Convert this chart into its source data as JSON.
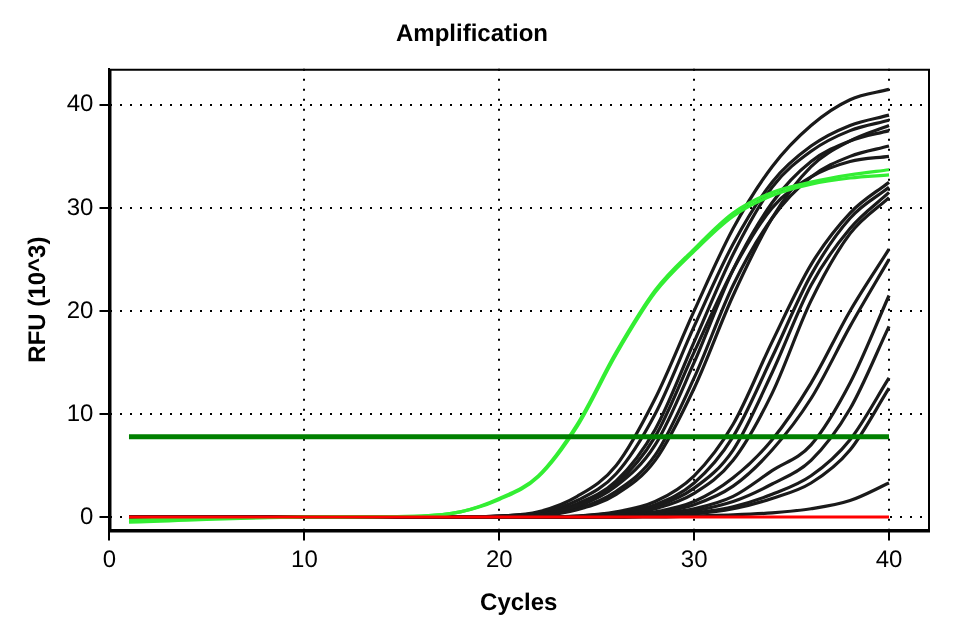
{
  "chart_data": {
    "type": "line",
    "title": "Amplification",
    "xlabel": "Cycles",
    "ylabel": "RFU (10^3)",
    "x": [
      1,
      10,
      16,
      18,
      20,
      22,
      24,
      26,
      28,
      30,
      32,
      34,
      36,
      38,
      40
    ],
    "xlim": [
      0,
      42
    ],
    "xticks": [
      0,
      10,
      20,
      30,
      40
    ],
    "ylim": [
      -1.3,
      43.5
    ],
    "yticks": [
      0,
      10,
      20,
      30,
      40
    ],
    "grid": true,
    "legend": false,
    "marker": "none",
    "line_style": "solid",
    "ref_lines": [
      {
        "axis": "y",
        "value": 7.8,
        "color": "#008000"
      }
    ],
    "series": [
      {
        "color": "#1a1a1a",
        "values": [
          0,
          0,
          0,
          0,
          0.1,
          0.5,
          2,
          5,
          11.5,
          20,
          28,
          34,
          38,
          40.5,
          41.5
        ]
      },
      {
        "color": "#1a1a1a",
        "values": [
          0,
          0,
          0,
          0,
          0.1,
          0.4,
          1.6,
          4.2,
          10,
          18.5,
          26.5,
          32.5,
          36,
          38,
          39
        ]
      },
      {
        "color": "#1a1a1a",
        "values": [
          0,
          0,
          0,
          0,
          0.1,
          0.3,
          1.3,
          3.5,
          8.5,
          17,
          25.5,
          32,
          35.5,
          37.5,
          38.5
        ]
      },
      {
        "color": "#1a1a1a",
        "values": [
          0,
          0,
          0,
          0,
          0,
          0.2,
          1,
          3,
          7,
          15,
          24,
          30.5,
          34.5,
          36.5,
          37.5
        ]
      },
      {
        "color": "#1a1a1a",
        "values": [
          0,
          0,
          0,
          0,
          0,
          0.2,
          0.8,
          2.5,
          6,
          13.5,
          22.5,
          29,
          33,
          35,
          36
        ]
      },
      {
        "color": "#1a1a1a",
        "values": [
          0,
          0,
          0,
          0,
          0,
          0.2,
          1.1,
          3.2,
          7.8,
          16,
          24,
          30,
          33,
          34.5,
          35
        ]
      },
      {
        "color": "#1a1a1a",
        "values": [
          0,
          0,
          0,
          0,
          0,
          0.1,
          0.7,
          2.2,
          5.5,
          12.5,
          21.5,
          29,
          34,
          36.5,
          38
        ]
      },
      {
        "color": "#1a1a1a",
        "values": [
          0,
          0,
          0,
          0,
          0,
          0,
          0.1,
          0.5,
          1.5,
          4,
          9,
          17,
          24.5,
          29.5,
          32.5
        ]
      },
      {
        "color": "#1a1a1a",
        "values": [
          0,
          0,
          0,
          0,
          0,
          0,
          0.1,
          0.4,
          1.2,
          3.3,
          7.8,
          15.5,
          23.5,
          29,
          32
        ]
      },
      {
        "color": "#1a1a1a",
        "values": [
          0,
          0,
          0,
          0,
          0,
          0,
          0,
          0.3,
          1,
          2.8,
          6.5,
          14,
          22.5,
          28,
          31.5
        ]
      },
      {
        "color": "#1a1a1a",
        "values": [
          0,
          0,
          0,
          0,
          0,
          0,
          0,
          0.2,
          0.8,
          2.3,
          5.5,
          12,
          21,
          27.5,
          31
        ]
      },
      {
        "color": "#1a1a1a",
        "values": [
          0,
          0,
          0,
          0,
          0,
          0,
          0,
          0.2,
          0.5,
          1.5,
          3.8,
          7.5,
          13,
          20,
          26
        ]
      },
      {
        "color": "#1a1a1a",
        "values": [
          0,
          0,
          0,
          0,
          0,
          0,
          0,
          0.1,
          0.4,
          1.2,
          3,
          6.5,
          11.5,
          18.5,
          25
        ]
      },
      {
        "color": "#1a1a1a",
        "values": [
          0,
          0,
          0,
          0,
          0,
          0,
          0,
          0.1,
          0.3,
          0.8,
          2,
          4.5,
          7,
          13,
          21.5
        ]
      },
      {
        "color": "#1a1a1a",
        "values": [
          0,
          0,
          0,
          0,
          0,
          0,
          0,
          0,
          0.2,
          0.6,
          1.5,
          3.2,
          5.5,
          10.5,
          18.5
        ]
      },
      {
        "color": "#1a1a1a",
        "values": [
          0,
          0,
          0,
          0,
          0,
          0,
          0,
          0,
          0.1,
          0.4,
          1,
          2.2,
          4,
          7.5,
          13.5
        ]
      },
      {
        "color": "#1a1a1a",
        "values": [
          0,
          0,
          0,
          0,
          0,
          0,
          0,
          0,
          0.1,
          0.3,
          0.8,
          1.8,
          3.3,
          6.5,
          12.5
        ]
      },
      {
        "color": "#1a1a1a",
        "values": [
          0,
          0,
          0,
          0,
          0,
          0,
          0,
          0,
          0,
          0.1,
          0.2,
          0.4,
          0.8,
          1.6,
          3.3
        ]
      },
      {
        "color": "#33ee33",
        "values": [
          -0.5,
          0,
          0.1,
          0.5,
          1.8,
          4,
          9,
          16,
          22,
          26,
          29.5,
          31.5,
          32.5,
          33.2,
          33.7
        ]
      },
      {
        "color": "#33ee33",
        "values": [
          -0.3,
          0,
          0.1,
          0.5,
          1.7,
          3.9,
          8.8,
          15.8,
          21.8,
          25.8,
          29.2,
          31.2,
          32.3,
          32.9,
          33.2
        ]
      },
      {
        "color": "#ff0000",
        "values": [
          0,
          0,
          0,
          0,
          0,
          0,
          0,
          0,
          0,
          0,
          0,
          0,
          0,
          0,
          0
        ]
      }
    ]
  }
}
